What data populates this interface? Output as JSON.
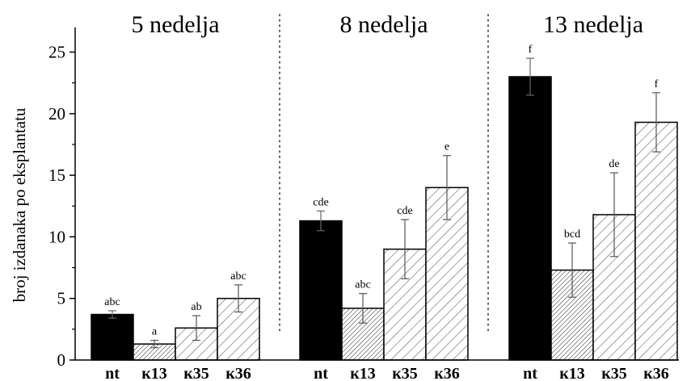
{
  "chart_data": {
    "type": "bar",
    "ylabel": "broj izdanaka po eksplantatu",
    "ylim": [
      0,
      27
    ],
    "yticks": [
      0,
      5,
      10,
      15,
      20,
      25
    ],
    "groups": [
      {
        "title": "5 nedelja",
        "bars": [
          {
            "category": "nt",
            "value": 3.7,
            "err": 0.3,
            "label": "abc",
            "fill": "solid"
          },
          {
            "category": "к13",
            "value": 1.3,
            "err": 0.3,
            "label": "a",
            "fill": "dense-hatch"
          },
          {
            "category": "к35",
            "value": 2.6,
            "err": 1.0,
            "label": "ab",
            "fill": "hatch"
          },
          {
            "category": "к36",
            "value": 5.0,
            "err": 1.1,
            "label": "abc",
            "fill": "hatch"
          }
        ]
      },
      {
        "title": "8 nedelja",
        "bars": [
          {
            "category": "nt",
            "value": 11.3,
            "err": 0.8,
            "label": "cde",
            "fill": "solid"
          },
          {
            "category": "к13",
            "value": 4.2,
            "err": 1.2,
            "label": "abc",
            "fill": "dense-hatch"
          },
          {
            "category": "к35",
            "value": 9.0,
            "err": 2.4,
            "label": "cde",
            "fill": "hatch"
          },
          {
            "category": "к36",
            "value": 14.0,
            "err": 2.6,
            "label": "e",
            "fill": "hatch"
          }
        ]
      },
      {
        "title": "13 nedelja",
        "bars": [
          {
            "category": "nt",
            "value": 23.0,
            "err": 1.5,
            "label": "f",
            "fill": "solid"
          },
          {
            "category": "к13",
            "value": 7.3,
            "err": 2.2,
            "label": "bcd",
            "fill": "dense-hatch"
          },
          {
            "category": "к35",
            "value": 11.8,
            "err": 3.4,
            "label": "de",
            "fill": "hatch"
          },
          {
            "category": "к36",
            "value": 19.3,
            "err": 2.4,
            "label": "f",
            "fill": "hatch"
          }
        ]
      }
    ]
  }
}
